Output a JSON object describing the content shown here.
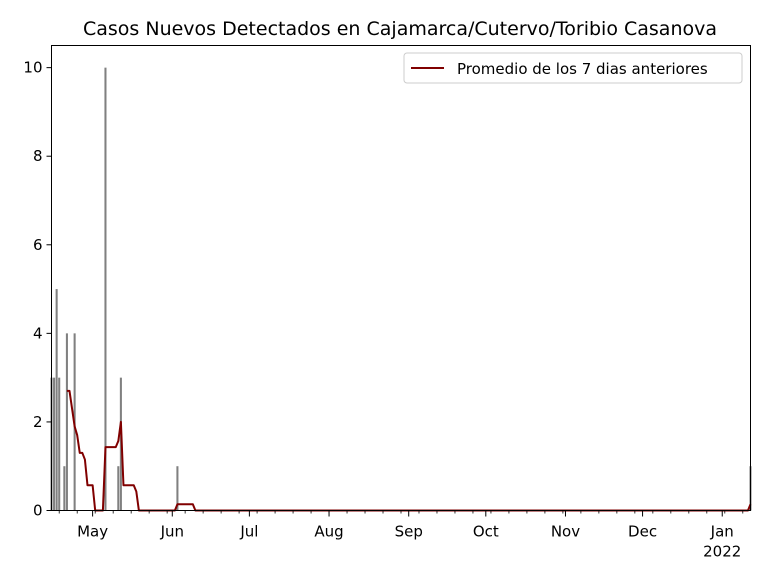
{
  "chart_data": {
    "type": "bar",
    "title": "Casos Nuevos Detectados en Cajamarca/Cutervo/Toribio Casanova",
    "xlabel": "",
    "ylabel": "",
    "ylim": [
      0,
      10.5
    ],
    "xlim": [
      "2021-04-15",
      "2022-01-12"
    ],
    "grid": false,
    "legend_placement": "top-right",
    "colors": {
      "bars": "#808080",
      "line": "#800000"
    },
    "y_ticks": [
      "0",
      "2",
      "4",
      "6",
      "8",
      "10"
    ],
    "x_tick_labels": [
      {
        "date": "2021-05-01",
        "label": "May"
      },
      {
        "date": "2021-06-01",
        "label": "Jun"
      },
      {
        "date": "2021-07-01",
        "label": "Jul"
      },
      {
        "date": "2021-08-01",
        "label": "Aug"
      },
      {
        "date": "2021-09-01",
        "label": "Sep"
      },
      {
        "date": "2021-10-01",
        "label": "Oct"
      },
      {
        "date": "2021-11-01",
        "label": "Nov"
      },
      {
        "date": "2021-12-01",
        "label": "Dec"
      },
      {
        "date": "2022-01-01",
        "label": "Jan"
      }
    ],
    "x_year_label": {
      "date": "2022-01-01",
      "label": "2022"
    },
    "daily_cases": [
      {
        "date": "2021-04-15",
        "value": 3
      },
      {
        "date": "2021-04-16",
        "value": 3
      },
      {
        "date": "2021-04-17",
        "value": 5
      },
      {
        "date": "2021-04-18",
        "value": 3
      },
      {
        "date": "2021-04-20",
        "value": 1
      },
      {
        "date": "2021-04-21",
        "value": 4
      },
      {
        "date": "2021-04-24",
        "value": 4
      },
      {
        "date": "2021-05-06",
        "value": 10
      },
      {
        "date": "2021-05-11",
        "value": 1
      },
      {
        "date": "2021-05-12",
        "value": 3
      },
      {
        "date": "2021-06-03",
        "value": 1
      },
      {
        "date": "2022-01-12",
        "value": 1
      }
    ],
    "series": [
      {
        "name": "Promedio de los 7 dias anteriores",
        "points": [
          {
            "date": "2021-04-21",
            "value": 2.7
          },
          {
            "date": "2021-04-22",
            "value": 2.7
          },
          {
            "date": "2021-04-23",
            "value": 2.3
          },
          {
            "date": "2021-04-24",
            "value": 1.9
          },
          {
            "date": "2021-04-25",
            "value": 1.7
          },
          {
            "date": "2021-04-26",
            "value": 1.3
          },
          {
            "date": "2021-04-27",
            "value": 1.3
          },
          {
            "date": "2021-04-28",
            "value": 1.15
          },
          {
            "date": "2021-04-29",
            "value": 0.57
          },
          {
            "date": "2021-04-30",
            "value": 0.57
          },
          {
            "date": "2021-05-01",
            "value": 0.57
          },
          {
            "date": "2021-05-02",
            "value": 0
          },
          {
            "date": "2021-05-05",
            "value": 0
          },
          {
            "date": "2021-05-06",
            "value": 1.43
          },
          {
            "date": "2021-05-10",
            "value": 1.43
          },
          {
            "date": "2021-05-11",
            "value": 1.57
          },
          {
            "date": "2021-05-12",
            "value": 2.0
          },
          {
            "date": "2021-05-13",
            "value": 0.57
          },
          {
            "date": "2021-05-17",
            "value": 0.57
          },
          {
            "date": "2021-05-18",
            "value": 0.43
          },
          {
            "date": "2021-05-19",
            "value": 0
          },
          {
            "date": "2021-06-02",
            "value": 0
          },
          {
            "date": "2021-06-03",
            "value": 0.14
          },
          {
            "date": "2021-06-09",
            "value": 0.14
          },
          {
            "date": "2021-06-10",
            "value": 0
          },
          {
            "date": "2022-01-11",
            "value": 0
          },
          {
            "date": "2022-01-12",
            "value": 0.14
          }
        ]
      }
    ]
  }
}
